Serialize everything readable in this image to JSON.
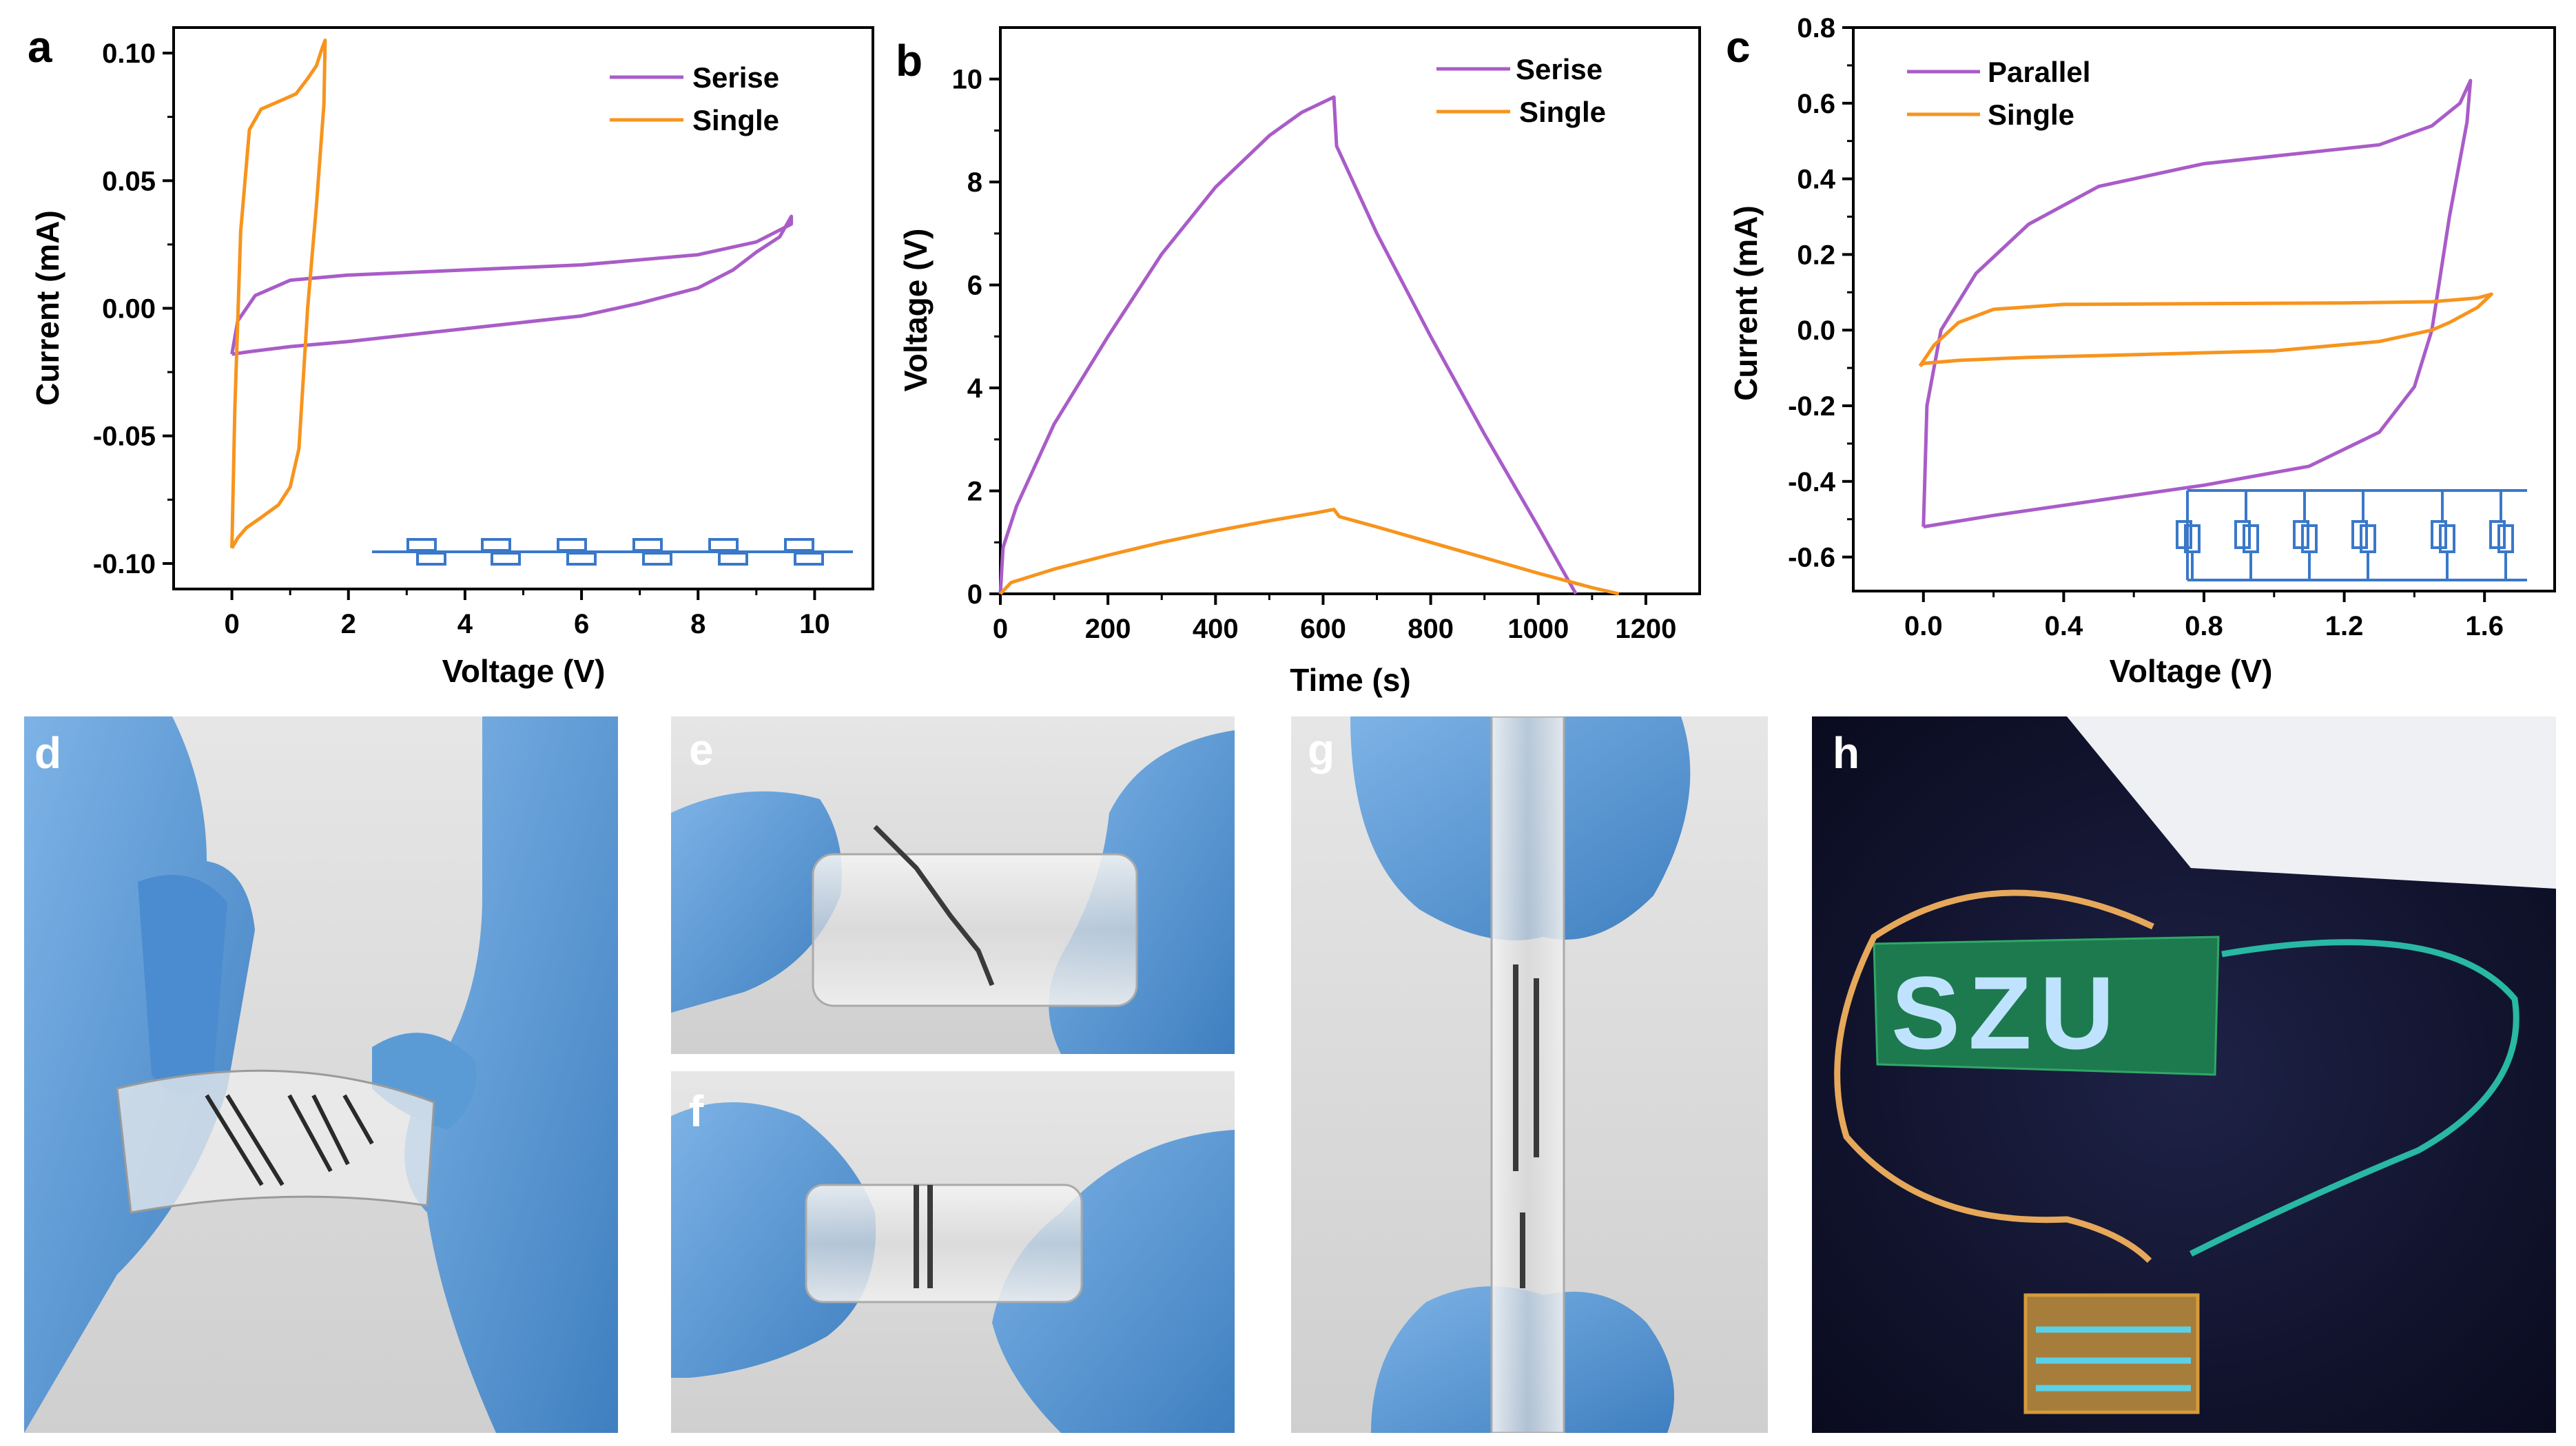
{
  "figure": {
    "panels": {
      "a": "a",
      "b": "b",
      "c": "c",
      "d": "d",
      "e": "e",
      "f": "f",
      "g": "g",
      "h": "h"
    },
    "board_text": "SZU",
    "colors": {
      "purple": "#A95CC8",
      "orange": "#F7941D",
      "circuit_blue": "#3A78C9",
      "glove": "#5B9BD5",
      "board_green": "#1d7a4e"
    }
  },
  "chart_data": [
    {
      "id": "a",
      "type": "line",
      "subtype": "cyclic-voltammetry",
      "xlabel": "Voltage (V)",
      "ylabel": "Current (mA)",
      "xlim": [
        -1,
        11
      ],
      "ylim": [
        -0.11,
        0.11
      ],
      "xticks": [
        0,
        2,
        4,
        6,
        8,
        10
      ],
      "yticks": [
        -0.1,
        -0.05,
        0.0,
        0.05,
        0.1
      ],
      "xtick_labels": [
        "0",
        "2",
        "4",
        "6",
        "8",
        "10"
      ],
      "ytick_labels": [
        "-0.10",
        "-0.05",
        "0.00",
        "0.05",
        "0.10"
      ],
      "legend": [
        "Serise",
        "Single"
      ],
      "series": [
        {
          "name": "Serise",
          "color": "#A95CC8",
          "points": [
            [
              0.0,
              -0.018
            ],
            [
              0.1,
              -0.005
            ],
            [
              0.4,
              0.005
            ],
            [
              1.0,
              0.011
            ],
            [
              2,
              0.013
            ],
            [
              4,
              0.015
            ],
            [
              6,
              0.017
            ],
            [
              8,
              0.021
            ],
            [
              9,
              0.026
            ],
            [
              9.6,
              0.033
            ],
            [
              9.6,
              0.036
            ],
            [
              9.4,
              0.028
            ],
            [
              9.0,
              0.022
            ],
            [
              8.6,
              0.015
            ],
            [
              8,
              0.008
            ],
            [
              7,
              0.002
            ],
            [
              6,
              -0.003
            ],
            [
              4,
              -0.008
            ],
            [
              2,
              -0.013
            ],
            [
              1,
              -0.015
            ],
            [
              0.3,
              -0.017
            ],
            [
              0.0,
              -0.018
            ]
          ]
        },
        {
          "name": "Single",
          "color": "#F7941D",
          "points": [
            [
              0.0,
              -0.094
            ],
            [
              0.05,
              -0.04
            ],
            [
              0.15,
              0.03
            ],
            [
              0.3,
              0.07
            ],
            [
              0.5,
              0.078
            ],
            [
              0.8,
              0.081
            ],
            [
              1.1,
              0.084
            ],
            [
              1.3,
              0.09
            ],
            [
              1.45,
              0.095
            ],
            [
              1.55,
              0.102
            ],
            [
              1.6,
              0.105
            ],
            [
              1.58,
              0.08
            ],
            [
              1.45,
              0.04
            ],
            [
              1.3,
              0.0
            ],
            [
              1.15,
              -0.055
            ],
            [
              1.0,
              -0.07
            ],
            [
              0.8,
              -0.077
            ],
            [
              0.5,
              -0.082
            ],
            [
              0.25,
              -0.086
            ],
            [
              0.1,
              -0.09
            ],
            [
              0.0,
              -0.094
            ]
          ]
        }
      ]
    },
    {
      "id": "b",
      "type": "line",
      "subtype": "galvanostatic-charge-discharge",
      "xlabel": "Time (s)",
      "ylabel": "Voltage (V)",
      "xlim": [
        0,
        1300
      ],
      "ylim": [
        0,
        11
      ],
      "xticks": [
        0,
        200,
        400,
        600,
        800,
        1000,
        1200
      ],
      "yticks": [
        0,
        2,
        4,
        6,
        8,
        10
      ],
      "xtick_labels": [
        "0",
        "200",
        "400",
        "600",
        "800",
        "1000",
        "1200"
      ],
      "ytick_labels": [
        "0",
        "2",
        "4",
        "6",
        "8",
        "10"
      ],
      "legend": [
        "Serise",
        "Single"
      ],
      "series": [
        {
          "name": "Serise",
          "color": "#A95CC8",
          "points": [
            [
              0,
              0
            ],
            [
              5,
              0.9
            ],
            [
              30,
              1.7
            ],
            [
              100,
              3.3
            ],
            [
              200,
              5.0
            ],
            [
              300,
              6.6
            ],
            [
              400,
              7.9
            ],
            [
              500,
              8.9
            ],
            [
              560,
              9.35
            ],
            [
              620,
              9.65
            ],
            [
              625,
              8.7
            ],
            [
              700,
              7.0
            ],
            [
              800,
              5.0
            ],
            [
              900,
              3.1
            ],
            [
              1000,
              1.3
            ],
            [
              1070,
              0.0
            ]
          ]
        },
        {
          "name": "Single",
          "color": "#F7941D",
          "points": [
            [
              0,
              0
            ],
            [
              20,
              0.22
            ],
            [
              100,
              0.48
            ],
            [
              200,
              0.75
            ],
            [
              300,
              1.0
            ],
            [
              400,
              1.22
            ],
            [
              500,
              1.42
            ],
            [
              580,
              1.56
            ],
            [
              620,
              1.64
            ],
            [
              630,
              1.5
            ],
            [
              700,
              1.3
            ],
            [
              800,
              1.0
            ],
            [
              900,
              0.7
            ],
            [
              1000,
              0.4
            ],
            [
              1100,
              0.12
            ],
            [
              1150,
              0.0
            ]
          ]
        }
      ]
    },
    {
      "id": "c",
      "type": "line",
      "subtype": "cyclic-voltammetry",
      "xlabel": "Voltage (V)",
      "ylabel": "Current (mA)",
      "xlim": [
        -0.2,
        1.8
      ],
      "ylim": [
        -0.69,
        0.8
      ],
      "xticks": [
        0.0,
        0.4,
        0.8,
        1.2,
        1.6
      ],
      "yticks": [
        -0.6,
        -0.4,
        -0.2,
        0.0,
        0.2,
        0.4,
        0.6,
        0.8
      ],
      "xtick_labels": [
        "0.0",
        "0.4",
        "0.8",
        "1.2",
        "1.6"
      ],
      "ytick_labels": [
        "-0.6",
        "-0.4",
        "-0.2",
        "0.0",
        "0.2",
        "0.4",
        "0.6",
        "0.8"
      ],
      "legend": [
        "Parallel",
        "Single"
      ],
      "series": [
        {
          "name": "Parallel",
          "color": "#A95CC8",
          "points": [
            [
              0.0,
              -0.52
            ],
            [
              0.01,
              -0.2
            ],
            [
              0.05,
              0.0
            ],
            [
              0.15,
              0.15
            ],
            [
              0.3,
              0.28
            ],
            [
              0.5,
              0.38
            ],
            [
              0.8,
              0.44
            ],
            [
              1.1,
              0.47
            ],
            [
              1.3,
              0.49
            ],
            [
              1.45,
              0.54
            ],
            [
              1.53,
              0.6
            ],
            [
              1.56,
              0.66
            ],
            [
              1.55,
              0.55
            ],
            [
              1.5,
              0.3
            ],
            [
              1.45,
              0.0
            ],
            [
              1.4,
              -0.15
            ],
            [
              1.3,
              -0.27
            ],
            [
              1.1,
              -0.36
            ],
            [
              0.8,
              -0.41
            ],
            [
              0.5,
              -0.45
            ],
            [
              0.2,
              -0.49
            ],
            [
              0.0,
              -0.52
            ]
          ]
        },
        {
          "name": "Single",
          "color": "#F7941D",
          "points": [
            [
              -0.01,
              -0.095
            ],
            [
              0.03,
              -0.04
            ],
            [
              0.1,
              0.02
            ],
            [
              0.2,
              0.055
            ],
            [
              0.4,
              0.068
            ],
            [
              0.8,
              0.07
            ],
            [
              1.2,
              0.072
            ],
            [
              1.45,
              0.075
            ],
            [
              1.58,
              0.085
            ],
            [
              1.62,
              0.095
            ],
            [
              1.58,
              0.06
            ],
            [
              1.5,
              0.02
            ],
            [
              1.45,
              0.0
            ],
            [
              1.3,
              -0.03
            ],
            [
              1.0,
              -0.055
            ],
            [
              0.6,
              -0.065
            ],
            [
              0.3,
              -0.072
            ],
            [
              0.1,
              -0.08
            ],
            [
              0.0,
              -0.088
            ],
            [
              -0.01,
              -0.095
            ]
          ]
        }
      ]
    }
  ]
}
